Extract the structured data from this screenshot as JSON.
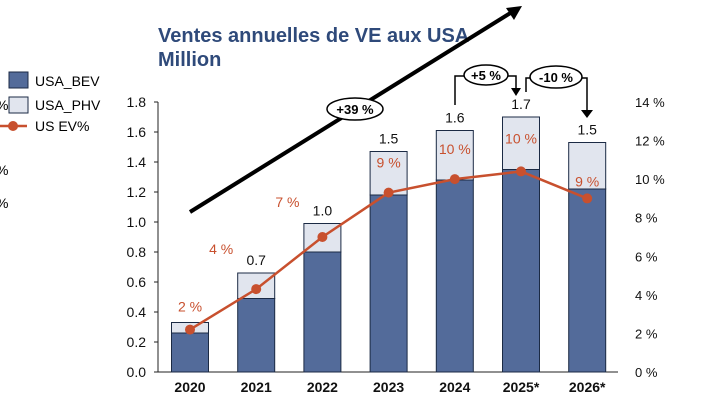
{
  "chart_data": {
    "type": "bar",
    "title": "Ventes annuelles de VE aux USA",
    "subtitle": "Million",
    "categories": [
      "2020",
      "2021",
      "2022",
      "2023",
      "2024",
      "2025*",
      "2026*"
    ],
    "series": [
      {
        "name": "USA_BEV",
        "type": "stacked-bar",
        "values": [
          0.26,
          0.49,
          0.8,
          1.18,
          1.28,
          1.35,
          1.22
        ],
        "color": "#536B9A"
      },
      {
        "name": "USA_PHV",
        "type": "stacked-bar",
        "values": [
          0.07,
          0.17,
          0.19,
          0.29,
          0.33,
          0.35,
          0.31
        ],
        "color": "#E1E5EE"
      },
      {
        "name": "US EV%",
        "type": "line",
        "axis": "right",
        "values": [
          2.2,
          4.3,
          7.0,
          9.3,
          10.0,
          10.4,
          9.0
        ],
        "color": "#C8502E"
      }
    ],
    "total_labels": [
      "",
      "0.7",
      "1.0",
      "1.5",
      "1.6",
      "1.7",
      "1.5"
    ],
    "pct_labels": [
      "2 %",
      "4 %",
      "7 %",
      "9 %",
      "10 %",
      "10 %",
      "9 %"
    ],
    "ylim": [
      0,
      1.8
    ],
    "yticks": [
      "0.0",
      "0.2",
      "0.4",
      "0.6",
      "0.8",
      "1.0",
      "1.2",
      "1.4",
      "1.6",
      "1.8"
    ],
    "y2lim": [
      0,
      14
    ],
    "y2ticks": [
      "0 %",
      "2 %",
      "4 %",
      "6 %",
      "8 %",
      "10 %",
      "12 %",
      "14 %"
    ],
    "annotations": {
      "trend": "+39 %",
      "growth_2025": "+5 %",
      "change_2026": "-10 %"
    },
    "legend": {
      "placement": "left",
      "entries": [
        "USA_BEV",
        "USA_PHV",
        "US EV%"
      ]
    },
    "cutoff_axis_fragments": [
      "%",
      "%",
      "%",
      "%"
    ]
  }
}
